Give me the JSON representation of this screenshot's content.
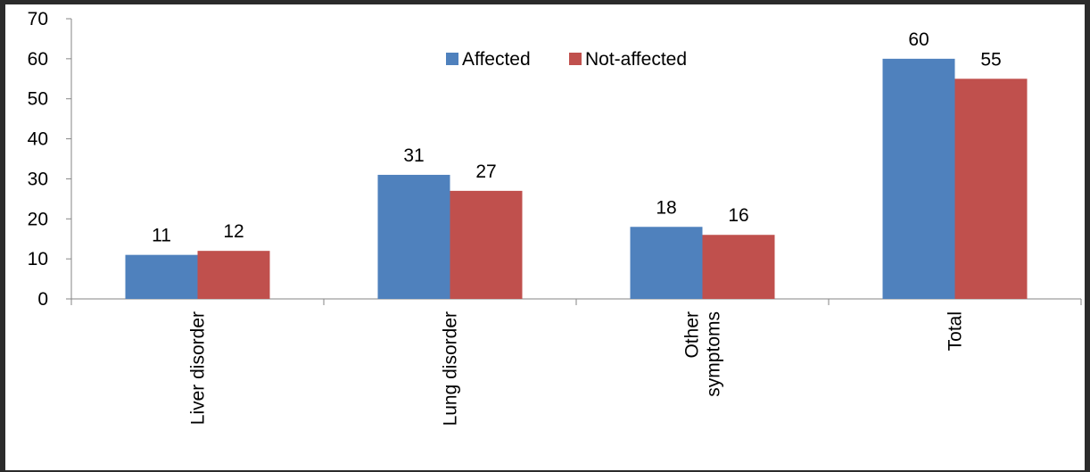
{
  "chart_data": {
    "type": "bar",
    "categories": [
      "Liver disorder",
      "Lung disorder",
      "Other\nsymptoms",
      "Total"
    ],
    "series": [
      {
        "name": "Affected",
        "values": [
          11,
          31,
          18,
          60
        ],
        "color": "#4f81bd"
      },
      {
        "name": "Not-affected",
        "values": [
          12,
          27,
          16,
          55
        ],
        "color": "#c0504d"
      }
    ],
    "ylim": [
      0,
      70
    ],
    "yticks": [
      0,
      10,
      20,
      30,
      40,
      50,
      60,
      70
    ],
    "data_labels": true,
    "grid": false,
    "legend_position": "top-center",
    "title": "",
    "xlabel": "",
    "ylabel": ""
  }
}
